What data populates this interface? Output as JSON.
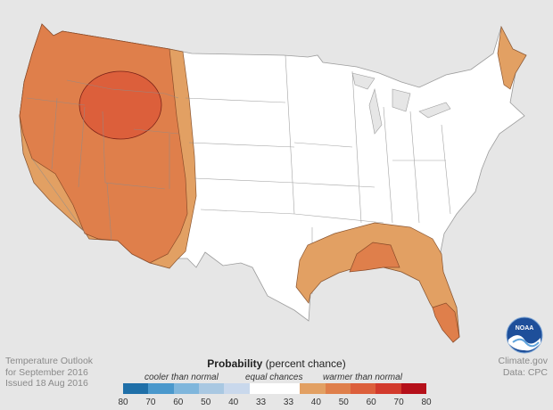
{
  "outlook": {
    "line1": "Temperature Outlook",
    "line2": "for September 2016",
    "line3": "Issued 18 Aug 2016"
  },
  "source": {
    "line1": "Climate.gov",
    "line2": "Data: CPC"
  },
  "legend": {
    "title_bold": "Probability",
    "title_rest": " (percent chance)",
    "cooler": "cooler than normal",
    "equal": "equal chances",
    "warmer": "warmer than normal",
    "ticks": [
      "80",
      "70",
      "60",
      "50",
      "40",
      "33",
      "33",
      "40",
      "50",
      "60",
      "70",
      "80"
    ],
    "colors": [
      "#1f6fa8",
      "#4a98cc",
      "#7fb6dc",
      "#a9c8e2",
      "#c9d8ec",
      "#ffffff",
      "#ffffff",
      "#e2a063",
      "#df7f4b",
      "#dc5f3b",
      "#d23a2c",
      "#b5101a"
    ]
  },
  "map": {
    "background": "#e6e6e6",
    "land": "#ffffff",
    "ring_40": "#e2a063",
    "ring_50": "#df7f4b",
    "ring_60": "#dc5f3b"
  },
  "logo": {
    "name": "noaa-logo",
    "text": "NOAA"
  }
}
